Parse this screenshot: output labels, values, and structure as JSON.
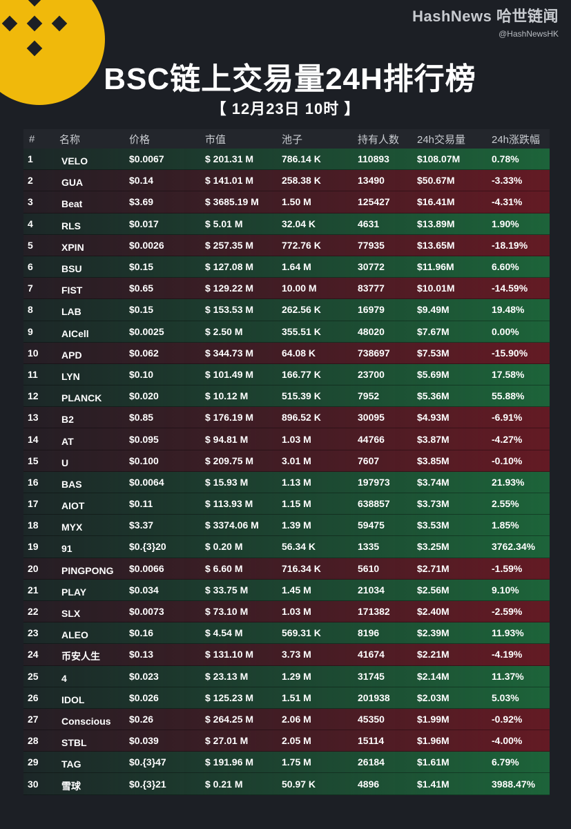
{
  "brand": {
    "name": "HashNews 哈世链闻",
    "handle": "@HashNewsHK"
  },
  "title": "BSC链上交易量24H排行榜",
  "date": "【 12月23日  10时 】",
  "colors": {
    "up": "#1d6b3c",
    "down": "#6b1a24",
    "accent": "#f0b90b"
  },
  "icons": {
    "logo": "binance-logo-icon"
  },
  "headers": [
    "#",
    "名称",
    "价格",
    "市值",
    "池子",
    "持有人数",
    "24h交易量",
    "24h涨跌幅"
  ],
  "rows": [
    {
      "idx": "1",
      "name": "VELO",
      "price": "$0.0067",
      "mcap": "$ 201.31 M",
      "pool": "786.14 K",
      "holders": "110893",
      "vol": "$108.07M",
      "chg": "0.78%",
      "dir": "up"
    },
    {
      "idx": "2",
      "name": "GUA",
      "price": "$0.14",
      "mcap": "$ 141.01 M",
      "pool": "258.38 K",
      "holders": "13490",
      "vol": "$50.67M",
      "chg": "-3.33%",
      "dir": "down"
    },
    {
      "idx": "3",
      "name": "Beat",
      "price": "$3.69",
      "mcap": "$ 3685.19 M",
      "pool": "1.50 M",
      "holders": "125427",
      "vol": "$16.41M",
      "chg": "-4.31%",
      "dir": "down"
    },
    {
      "idx": "4",
      "name": "RLS",
      "price": "$0.017",
      "mcap": "$ 5.01 M",
      "pool": "32.04 K",
      "holders": "4631",
      "vol": "$13.89M",
      "chg": "1.90%",
      "dir": "up"
    },
    {
      "idx": "5",
      "name": "XPIN",
      "price": "$0.0026",
      "mcap": "$ 257.35 M",
      "pool": "772.76 K",
      "holders": "77935",
      "vol": "$13.65M",
      "chg": "-18.19%",
      "dir": "down"
    },
    {
      "idx": "6",
      "name": "BSU",
      "price": "$0.15",
      "mcap": "$ 127.08 M",
      "pool": "1.64 M",
      "holders": "30772",
      "vol": "$11.96M",
      "chg": "6.60%",
      "dir": "up"
    },
    {
      "idx": "7",
      "name": "FIST",
      "price": "$0.65",
      "mcap": "$ 129.22 M",
      "pool": "10.00 M",
      "holders": "83777",
      "vol": "$10.01M",
      "chg": "-14.59%",
      "dir": "down"
    },
    {
      "idx": "8",
      "name": "LAB",
      "price": "$0.15",
      "mcap": "$ 153.53 M",
      "pool": "262.56 K",
      "holders": "16979",
      "vol": "$9.49M",
      "chg": "19.48%",
      "dir": "up"
    },
    {
      "idx": "9",
      "name": "AICell",
      "price": "$0.0025",
      "mcap": "$ 2.50 M",
      "pool": "355.51 K",
      "holders": "48020",
      "vol": "$7.67M",
      "chg": "0.00%",
      "dir": "up"
    },
    {
      "idx": "10",
      "name": "APD",
      "price": "$0.062",
      "mcap": "$ 344.73 M",
      "pool": "64.08 K",
      "holders": "738697",
      "vol": "$7.53M",
      "chg": "-15.90%",
      "dir": "down"
    },
    {
      "idx": "11",
      "name": "LYN",
      "price": "$0.10",
      "mcap": "$ 101.49 M",
      "pool": "166.77 K",
      "holders": "23700",
      "vol": "$5.69M",
      "chg": "17.58%",
      "dir": "up"
    },
    {
      "idx": "12",
      "name": "PLANCK",
      "price": "$0.020",
      "mcap": "$ 10.12 M",
      "pool": "515.39 K",
      "holders": "7952",
      "vol": "$5.36M",
      "chg": "55.88%",
      "dir": "up"
    },
    {
      "idx": "13",
      "name": "B2",
      "price": "$0.85",
      "mcap": "$ 176.19 M",
      "pool": "896.52 K",
      "holders": "30095",
      "vol": "$4.93M",
      "chg": "-6.91%",
      "dir": "down"
    },
    {
      "idx": "14",
      "name": "AT",
      "price": "$0.095",
      "mcap": "$ 94.81 M",
      "pool": "1.03 M",
      "holders": "44766",
      "vol": "$3.87M",
      "chg": "-4.27%",
      "dir": "down"
    },
    {
      "idx": "15",
      "name": "U",
      "price": "$0.100",
      "mcap": "$ 209.75 M",
      "pool": "3.01 M",
      "holders": "7607",
      "vol": "$3.85M",
      "chg": "-0.10%",
      "dir": "down"
    },
    {
      "idx": "16",
      "name": "BAS",
      "price": "$0.0064",
      "mcap": "$ 15.93 M",
      "pool": "1.13 M",
      "holders": "197973",
      "vol": "$3.74M",
      "chg": "21.93%",
      "dir": "up"
    },
    {
      "idx": "17",
      "name": "AIOT",
      "price": "$0.11",
      "mcap": "$ 113.93 M",
      "pool": "1.15 M",
      "holders": "638857",
      "vol": "$3.73M",
      "chg": "2.55%",
      "dir": "up"
    },
    {
      "idx": "18",
      "name": "MYX",
      "price": "$3.37",
      "mcap": "$ 3374.06 M",
      "pool": "1.39 M",
      "holders": "59475",
      "vol": "$3.53M",
      "chg": "1.85%",
      "dir": "up"
    },
    {
      "idx": "19",
      "name": "91",
      "price": "$0.{3}20",
      "mcap": "$ 0.20 M",
      "pool": "56.34 K",
      "holders": "1335",
      "vol": "$3.25M",
      "chg": "3762.34%",
      "dir": "up"
    },
    {
      "idx": "20",
      "name": "PINGPONG",
      "price": "$0.0066",
      "mcap": "$ 6.60 M",
      "pool": "716.34 K",
      "holders": "5610",
      "vol": "$2.71M",
      "chg": "-1.59%",
      "dir": "down"
    },
    {
      "idx": "21",
      "name": "PLAY",
      "price": "$0.034",
      "mcap": "$ 33.75 M",
      "pool": "1.45 M",
      "holders": "21034",
      "vol": "$2.56M",
      "chg": "9.10%",
      "dir": "up"
    },
    {
      "idx": "22",
      "name": "SLX",
      "price": "$0.0073",
      "mcap": "$ 73.10 M",
      "pool": "1.03 M",
      "holders": "171382",
      "vol": "$2.40M",
      "chg": "-2.59%",
      "dir": "down"
    },
    {
      "idx": "23",
      "name": "ALEO",
      "price": "$0.16",
      "mcap": "$ 4.54 M",
      "pool": "569.31 K",
      "holders": "8196",
      "vol": "$2.39M",
      "chg": "11.93%",
      "dir": "up"
    },
    {
      "idx": "24",
      "name": "币安人生",
      "price": "$0.13",
      "mcap": "$ 131.10 M",
      "pool": "3.73 M",
      "holders": "41674",
      "vol": "$2.21M",
      "chg": "-4.19%",
      "dir": "down"
    },
    {
      "idx": "25",
      "name": "4",
      "price": "$0.023",
      "mcap": "$ 23.13 M",
      "pool": "1.29 M",
      "holders": "31745",
      "vol": "$2.14M",
      "chg": "11.37%",
      "dir": "up"
    },
    {
      "idx": "26",
      "name": "IDOL",
      "price": "$0.026",
      "mcap": "$ 125.23 M",
      "pool": "1.51 M",
      "holders": "201938",
      "vol": "$2.03M",
      "chg": "5.03%",
      "dir": "up"
    },
    {
      "idx": "27",
      "name": "Conscious",
      "price": "$0.26",
      "mcap": "$ 264.25 M",
      "pool": "2.06 M",
      "holders": "45350",
      "vol": "$1.99M",
      "chg": "-0.92%",
      "dir": "down"
    },
    {
      "idx": "28",
      "name": "STBL",
      "price": "$0.039",
      "mcap": "$ 27.01 M",
      "pool": "2.05 M",
      "holders": "15114",
      "vol": "$1.96M",
      "chg": "-4.00%",
      "dir": "down"
    },
    {
      "idx": "29",
      "name": "TAG",
      "price": "$0.{3}47",
      "mcap": "$ 191.96 M",
      "pool": "1.75 M",
      "holders": "26184",
      "vol": "$1.61M",
      "chg": "6.79%",
      "dir": "up"
    },
    {
      "idx": "30",
      "name": "雪球",
      "price": "$0.{3}21",
      "mcap": "$ 0.21 M",
      "pool": "50.97 K",
      "holders": "4896",
      "vol": "$1.41M",
      "chg": "3988.47%",
      "dir": "up"
    }
  ]
}
